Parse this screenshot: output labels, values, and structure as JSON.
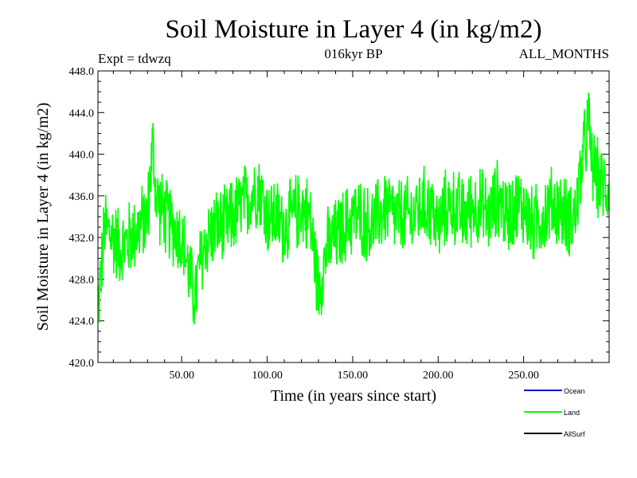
{
  "chart_data": {
    "type": "line",
    "title": "Soil Moisture in Layer 4 (in kg/m2)",
    "subtitle_left": "Expt = tdwzq",
    "subtitle_center": "016kyr BP",
    "subtitle_right": "ALL_MONTHS",
    "xlabel": "Time (in years since start)",
    "ylabel": "Soil Moisture in Layer 4 (in kg/m2)",
    "xlim": [
      1,
      300
    ],
    "ylim": [
      420,
      448
    ],
    "x_ticks": [
      {
        "value": 50,
        "label": "50.00"
      },
      {
        "value": 100,
        "label": "100.00"
      },
      {
        "value": 150,
        "label": "150.00"
      },
      {
        "value": 200,
        "label": "200.00"
      },
      {
        "value": 250,
        "label": "250.00"
      }
    ],
    "y_ticks": [
      {
        "value": 420,
        "label": "420.0"
      },
      {
        "value": 424,
        "label": "424.0"
      },
      {
        "value": 428,
        "label": "428.0"
      },
      {
        "value": 432,
        "label": "432.0"
      },
      {
        "value": 436,
        "label": "436.0"
      },
      {
        "value": 440,
        "label": "440.0"
      },
      {
        "value": 444,
        "label": "444.0"
      },
      {
        "value": 448,
        "label": "448.0"
      }
    ],
    "legend": [
      {
        "name": "Ocean",
        "color": "#0000cc"
      },
      {
        "name": "Land",
        "color": "#00ff00"
      },
      {
        "name": "AllSurf",
        "color": "#000000"
      }
    ],
    "legend_placement": "bottom-right",
    "series": [
      {
        "name": "Land",
        "color": "#00ff00",
        "x": [
          1,
          5,
          10,
          15,
          20,
          25,
          30,
          33,
          35,
          40,
          45,
          50,
          55,
          58,
          60,
          65,
          70,
          75,
          80,
          85,
          90,
          95,
          100,
          105,
          110,
          115,
          120,
          125,
          130,
          135,
          140,
          145,
          150,
          155,
          160,
          165,
          170,
          175,
          180,
          185,
          190,
          195,
          200,
          205,
          210,
          215,
          220,
          225,
          230,
          235,
          240,
          245,
          250,
          255,
          260,
          265,
          270,
          275,
          280,
          285,
          288,
          290,
          295,
          300
        ],
        "y": [
          425,
          433,
          432,
          431,
          432,
          433,
          434,
          441,
          436,
          434,
          433,
          432,
          428,
          426,
          429,
          432,
          433,
          433,
          434,
          435,
          436,
          437,
          434,
          434,
          433,
          434,
          435,
          434,
          427,
          431,
          432,
          433,
          434,
          434,
          433,
          434,
          435,
          434,
          434,
          434,
          435,
          435,
          433,
          435,
          435,
          434,
          435,
          435,
          434,
          436,
          434,
          435,
          435,
          433,
          434,
          435,
          435,
          434,
          434,
          440,
          443,
          439,
          437,
          437
        ]
      }
    ]
  }
}
